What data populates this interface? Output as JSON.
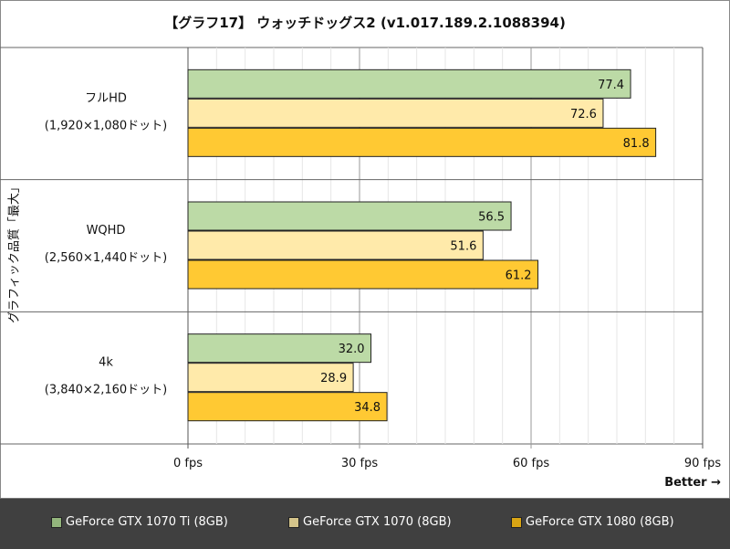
{
  "chart_data": {
    "type": "bar",
    "orientation": "horizontal",
    "title": "【グラフ17】 ウォッチドッグス2 (v1.017.189.2.1088394)",
    "ylabel": "グラフィック品質「最大」",
    "xlabel": "Better →",
    "categories": [
      {
        "name": "フルHD",
        "sub": "(1,920×1,080ドット)"
      },
      {
        "name": "WQHD",
        "sub": "(2,560×1,440ドット)"
      },
      {
        "name": "4k",
        "sub": "(3,840×2,160ドット)"
      }
    ],
    "series": [
      {
        "name": "GeForce GTX 1070 Ti (8GB)",
        "color": "#bcdaa6",
        "legend_color": "#93b57c",
        "values": [
          77.4,
          56.5,
          32.0
        ]
      },
      {
        "name": "GeForce GTX 1070 (8GB)",
        "color": "#ffeaaa",
        "legend_color": "#d4c48a",
        "values": [
          72.6,
          51.6,
          28.9
        ]
      },
      {
        "name": "GeForce GTX 1080 (8GB)",
        "color": "#ffc933",
        "legend_color": "#d9a514",
        "values": [
          81.8,
          61.2,
          34.8
        ]
      }
    ],
    "xlim": [
      0,
      90
    ],
    "xticks": [
      0,
      30,
      60,
      90
    ],
    "xtick_labels": [
      "0 fps",
      "30 fps",
      "60 fps",
      "90 fps"
    ],
    "minor_grid_step": 5,
    "grid": true,
    "legend_placement": "bottom"
  }
}
